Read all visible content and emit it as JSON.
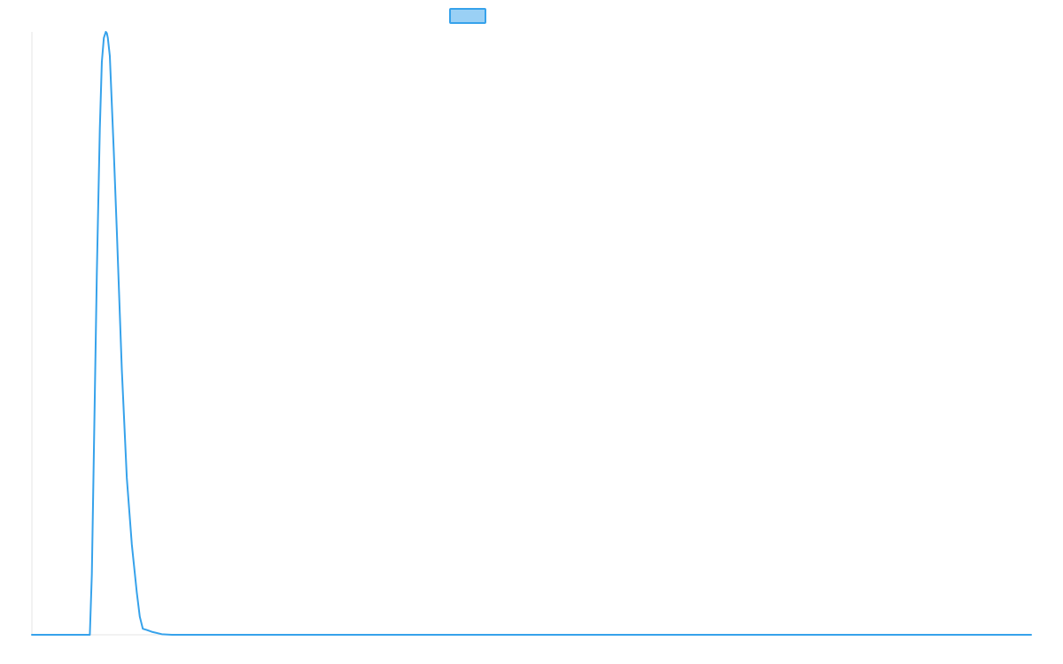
{
  "chart_data": {
    "type": "line",
    "title": "",
    "xlabel": "",
    "ylabel": "",
    "grid": false,
    "legend": {
      "placement": "top-center",
      "label": "",
      "fill_color": "#9ad0f5",
      "border_color": "#36a2eb"
    },
    "xlim": [
      0,
      1
    ],
    "ylim": [
      0,
      1
    ],
    "series": [
      {
        "color": "#36a2eb",
        "x": [
          0,
          0.058,
          0.06,
          0.062,
          0.065,
          0.068,
          0.07,
          0.072,
          0.074,
          0.075,
          0.076,
          0.078,
          0.08,
          0.082,
          0.085,
          0.09,
          0.095,
          0.1,
          0.105,
          0.108,
          0.111,
          0.115,
          0.12,
          0.13,
          0.14,
          0.15,
          1
        ],
        "y": [
          0,
          0,
          0.1,
          0.3,
          0.6,
          0.84,
          0.95,
          0.99,
          1.0,
          0.998,
          0.99,
          0.96,
          0.88,
          0.8,
          0.67,
          0.44,
          0.26,
          0.15,
          0.07,
          0.03,
          0.01,
          0.008,
          0.005,
          0.001,
          0,
          0,
          0
        ]
      }
    ]
  }
}
